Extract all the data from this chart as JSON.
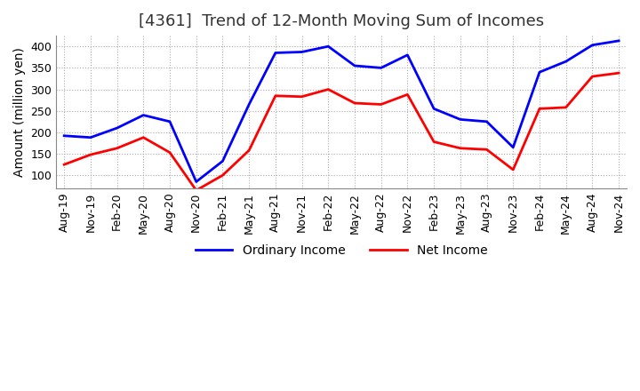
{
  "title": "[4361]  Trend of 12-Month Moving Sum of Incomes",
  "ylabel": "Amount (million yen)",
  "ylim": [
    70,
    425
  ],
  "yticks": [
    100,
    150,
    200,
    250,
    300,
    350,
    400
  ],
  "x_labels": [
    "Aug-19",
    "Nov-19",
    "Feb-20",
    "May-20",
    "Aug-20",
    "Nov-20",
    "Feb-21",
    "May-21",
    "Aug-21",
    "Nov-21",
    "Feb-22",
    "May-22",
    "Aug-22",
    "Nov-22",
    "Feb-23",
    "May-23",
    "Aug-23",
    "Nov-23",
    "Feb-24",
    "May-24",
    "Aug-24",
    "Nov-24"
  ],
  "ordinary_income": [
    192,
    188,
    210,
    240,
    225,
    85,
    133,
    265,
    385,
    387,
    400,
    355,
    350,
    380,
    255,
    230,
    225,
    165,
    340,
    365,
    403,
    413
  ],
  "net_income": [
    125,
    148,
    163,
    188,
    153,
    65,
    100,
    158,
    285,
    283,
    300,
    268,
    265,
    288,
    178,
    163,
    160,
    113,
    255,
    258,
    330,
    338
  ],
  "ordinary_color": "#0000FF",
  "net_color": "#FF0000",
  "grid_color": "#AAAAAA",
  "background_color": "#FFFFFF",
  "title_fontsize": 13,
  "axis_fontsize": 10,
  "tick_fontsize": 9,
  "legend_fontsize": 10
}
